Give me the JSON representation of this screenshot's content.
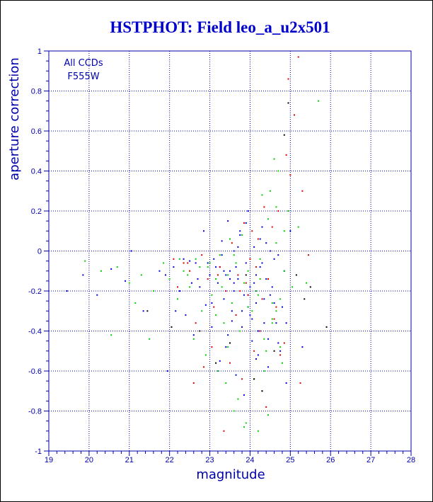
{
  "chart_data": {
    "type": "scatter",
    "title": "HSTPHOT: Field leo_a_u2x501",
    "xlabel": "magnitude",
    "ylabel": "aperture correction",
    "xlim": [
      19,
      28
    ],
    "ylim": [
      -1,
      1
    ],
    "x_ticks": [
      "19",
      "20",
      "21",
      "22",
      "23",
      "24",
      "25",
      "26",
      "27",
      "28"
    ],
    "y_ticks": [
      "-1",
      "-0.8",
      "-0.6",
      "-0.4",
      "-0.2",
      "0",
      "0.2",
      "0.4",
      "0.6",
      "0.8",
      "1"
    ],
    "grid": true,
    "annotations": [
      "All CCDs",
      "F555W"
    ],
    "colors": {
      "title": "#0000cc",
      "axes": "#0000aa",
      "grid": "#0000aa",
      "series": [
        "#0000dd",
        "#00cc00",
        "#dd0000",
        "#000000"
      ]
    },
    "series": [
      {
        "color": "#0000dd",
        "x": [
          19.45,
          19.85,
          20.2,
          20.55,
          20.9,
          21.05,
          21.35,
          21.75,
          21.95,
          22.1,
          22.25,
          22.4,
          22.5,
          22.6,
          22.75,
          22.85,
          22.9,
          23.0,
          23.05,
          23.1,
          23.2,
          23.25,
          23.3,
          23.35,
          23.4,
          23.45,
          23.5,
          23.55,
          23.6,
          23.65,
          23.7,
          23.75,
          23.8,
          23.85,
          23.9,
          23.95,
          24.0,
          24.05,
          24.1,
          24.15,
          24.2,
          24.25,
          24.3,
          24.35,
          24.4,
          24.45,
          24.5,
          24.6,
          24.7,
          24.8,
          24.9,
          25.0,
          23.15,
          23.6,
          23.9,
          24.15,
          24.4,
          24.65,
          22.7,
          23.3,
          23.95,
          24.25,
          24.55,
          23.45,
          23.75,
          24.05,
          24.35,
          24.75,
          22.95,
          23.55,
          24.2,
          24.5,
          24.85,
          23.65,
          23.85,
          24.1,
          23.4,
          23.7,
          24.0,
          24.3,
          24.6,
          22.35,
          22.55,
          23.05,
          23.25,
          23.5,
          23.8,
          24.45,
          24.7,
          21.9,
          22.15,
          22.65,
          23.35,
          23.95,
          24.15,
          24.9,
          25.3,
          23.6
        ],
        "y": [
          -0.2,
          -0.12,
          -0.22,
          -0.09,
          -0.15,
          0.0,
          -0.3,
          -0.1,
          -0.6,
          -0.08,
          -0.2,
          -0.32,
          -0.05,
          -0.42,
          -0.18,
          0.1,
          -0.27,
          -0.12,
          -0.38,
          -0.04,
          -0.16,
          -0.55,
          0.05,
          -0.24,
          -0.48,
          0.15,
          -0.1,
          -0.35,
          0.0,
          -0.62,
          -0.14,
          0.08,
          -0.3,
          -0.72,
          -0.06,
          0.2,
          -0.18,
          -0.45,
          0.02,
          -0.26,
          -0.52,
          -0.08,
          0.12,
          -0.36,
          -0.14,
          -0.58,
          -0.22,
          -0.04,
          -0.46,
          -0.28,
          -0.66,
          0.1,
          -0.08,
          -0.2,
          0.14,
          -0.12,
          0.04,
          -0.36,
          -0.14,
          -0.02,
          -0.28,
          0.06,
          -0.18,
          -0.42,
          0.1,
          -0.34,
          -0.24,
          -0.5,
          -0.06,
          -0.3,
          -0.4,
          0.0,
          -0.1,
          -0.08,
          -0.22,
          -0.16,
          -0.12,
          0.02,
          -0.32,
          -0.06,
          -0.26,
          -0.04,
          -0.16,
          -0.26,
          -0.08,
          -0.14,
          -0.38,
          -0.44,
          -0.02,
          -0.12,
          -0.3,
          -0.06,
          -0.1,
          -0.22,
          -0.54,
          -0.36,
          -0.48,
          -0.16
        ],
        "_": 0
      },
      {
        "color": "#00cc00",
        "x": [
          19.9,
          20.3,
          20.7,
          21.0,
          21.3,
          21.6,
          21.85,
          22.0,
          22.2,
          22.35,
          22.5,
          22.65,
          22.8,
          22.95,
          23.05,
          23.15,
          23.25,
          23.35,
          23.45,
          23.55,
          23.65,
          23.75,
          23.85,
          23.95,
          24.05,
          24.15,
          24.25,
          24.35,
          24.45,
          24.55,
          24.65,
          24.75,
          24.85,
          24.95,
          25.05,
          24.5,
          24.7,
          24.6,
          24.4,
          24.8,
          24.3,
          23.6,
          23.4,
          23.9,
          24.2,
          22.6,
          22.9,
          23.2,
          23.7,
          24.1,
          24.45,
          24.65,
          24.85,
          25.2,
          25.4,
          25.7,
          24.55,
          24.3,
          23.8,
          23.5,
          22.45,
          22.75,
          23.0,
          23.3,
          23.6,
          23.95,
          24.25,
          24.55,
          24.75,
          22.25,
          21.5,
          21.15,
          20.55,
          24.35,
          24.45,
          23.85,
          24.65,
          24.2,
          23.45,
          23.15
        ],
        "y": [
          -0.05,
          -0.1,
          -0.08,
          -0.16,
          -0.12,
          -0.2,
          -0.06,
          -0.14,
          -0.24,
          -0.1,
          -0.18,
          -0.04,
          -0.3,
          -0.08,
          -0.22,
          -0.14,
          -0.02,
          -0.36,
          -0.12,
          -0.26,
          -0.06,
          -0.4,
          -0.16,
          -0.1,
          -0.3,
          -0.2,
          -0.04,
          -0.44,
          -0.14,
          -0.34,
          0.04,
          -0.24,
          -0.1,
          0.2,
          -0.18,
          0.3,
          0.4,
          0.46,
          -0.5,
          -0.56,
          -0.7,
          -0.8,
          -0.66,
          -0.86,
          -0.9,
          -0.44,
          -0.52,
          -0.6,
          -0.74,
          -0.64,
          0.16,
          0.22,
          0.1,
          0.12,
          -0.16,
          0.75,
          -0.26,
          0.28,
          0.08,
          0.06,
          -0.12,
          -0.08,
          -0.06,
          -0.18,
          -0.02,
          -0.28,
          -0.14,
          -0.36,
          -0.48,
          -0.04,
          -0.44,
          -0.26,
          -0.42,
          -0.6,
          -0.82,
          -0.88,
          -0.3,
          -0.22,
          -0.48,
          -0.32
        ],
        "_": 0
      },
      {
        "color": "#dd0000",
        "x": [
          25.2,
          24.95,
          25.1,
          24.9,
          25.0,
          24.7,
          24.55,
          24.35,
          24.2,
          24.0,
          23.85,
          23.7,
          23.55,
          23.4,
          23.25,
          23.1,
          22.95,
          22.8,
          22.65,
          22.5,
          22.35,
          22.2,
          22.1,
          23.65,
          23.95,
          24.25,
          24.45,
          24.65,
          24.85,
          25.3,
          25.45,
          23.5,
          23.8,
          24.1,
          24.4,
          24.75,
          23.35,
          22.6,
          22.85,
          23.05,
          23.9,
          24.15,
          24.6,
          24.3,
          23.2,
          22.45,
          25.25,
          24.05,
          23.75
        ],
        "y": [
          0.97,
          0.86,
          0.68,
          0.48,
          0.38,
          0.2,
          0.12,
          0.22,
          0.06,
          -0.04,
          0.14,
          -0.12,
          0.04,
          -0.2,
          -0.08,
          -0.28,
          -0.14,
          -0.02,
          -0.36,
          -0.1,
          -0.06,
          -0.18,
          -0.04,
          -0.32,
          -0.22,
          -0.4,
          -0.14,
          -0.28,
          -0.46,
          0.3,
          -0.02,
          -0.56,
          -0.64,
          -0.5,
          -0.78,
          -0.52,
          -0.9,
          -0.66,
          -0.58,
          -0.48,
          -0.16,
          -0.08,
          -0.34,
          -0.24,
          -0.12,
          -0.06,
          -0.66,
          0.1,
          -0.2
        ],
        "_": 0
      },
      {
        "color": "#000000",
        "x": [
          22.05,
          23.15,
          24.3,
          24.95,
          24.85,
          25.15,
          25.5,
          25.9,
          24.1,
          23.5,
          21.45,
          22.75,
          24.6,
          25.35,
          23.9
        ],
        "y": [
          -0.38,
          -0.56,
          -0.7,
          0.74,
          0.58,
          -0.12,
          -0.18,
          -0.38,
          -0.64,
          -0.46,
          -0.3,
          -0.4,
          -0.5,
          -0.24,
          -0.12
        ],
        "_": 0
      }
    ]
  }
}
